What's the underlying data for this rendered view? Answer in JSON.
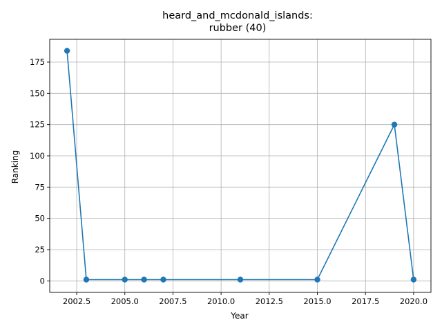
{
  "chart_data": {
    "type": "line",
    "title_lines": [
      "heard_and_mcdonald_islands:",
      "rubber (40)"
    ],
    "xlabel": "Year",
    "ylabel": "Ranking",
    "xlim": [
      2001.1,
      2020.9
    ],
    "ylim": [
      -9.2,
      193.2
    ],
    "x_ticks": [
      2002.5,
      2005.0,
      2007.5,
      2010.0,
      2012.5,
      2015.0,
      2017.5,
      2020.0
    ],
    "x_tick_labels": [
      "2002.5",
      "2005.0",
      "2007.5",
      "2010.0",
      "2012.5",
      "2015.0",
      "2017.5",
      "2020.0"
    ],
    "y_ticks": [
      0,
      25,
      50,
      75,
      100,
      125,
      150,
      175
    ],
    "y_tick_labels": [
      "0",
      "25",
      "50",
      "75",
      "100",
      "125",
      "150",
      "175"
    ],
    "grid": true,
    "series": [
      {
        "color": "#1f77b4",
        "marker": "circle",
        "x": [
          2002,
          2003,
          2005,
          2006,
          2007,
          2011,
          2015,
          2019,
          2020
        ],
        "y": [
          184,
          1,
          1,
          1,
          1,
          1,
          1,
          125,
          1
        ]
      }
    ]
  }
}
